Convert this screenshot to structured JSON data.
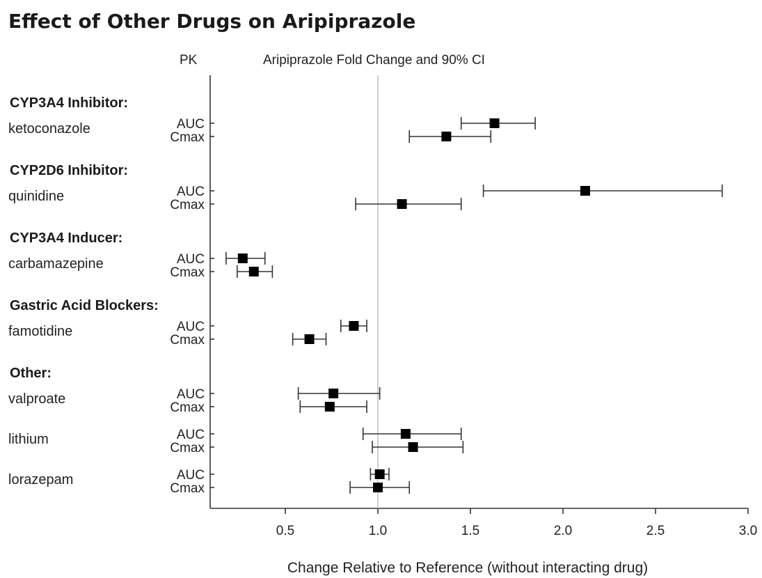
{
  "chart_data": {
    "type": "forest",
    "title": "Effect of Other Drugs on Aripiprazole",
    "column_header_left": "PK",
    "column_header_right": "Aripiprazole Fold Change and 90% CI",
    "xlabel": "Change Relative to Reference (without interacting drug)",
    "xlim": [
      0.1,
      3.0
    ],
    "xticks": [
      "0.5",
      "1.0",
      "1.5",
      "2.0",
      "2.5",
      "3.0"
    ],
    "reference_line": 1.0,
    "groups": [
      {
        "label": "CYP3A4 Inhibitor:",
        "drugs": [
          {
            "name": "ketoconazole",
            "rows": [
              {
                "pk": "AUC",
                "estimate": 1.63,
                "ci": [
                  1.45,
                  1.85
                ]
              },
              {
                "pk": "Cmax",
                "estimate": 1.37,
                "ci": [
                  1.17,
                  1.61
                ]
              }
            ]
          }
        ]
      },
      {
        "label": "CYP2D6 Inhibitor:",
        "drugs": [
          {
            "name": "quinidine",
            "rows": [
              {
                "pk": "AUC",
                "estimate": 2.12,
                "ci": [
                  1.57,
                  2.86
                ]
              },
              {
                "pk": "Cmax",
                "estimate": 1.13,
                "ci": [
                  0.88,
                  1.45
                ]
              }
            ]
          }
        ]
      },
      {
        "label": "CYP3A4 Inducer:",
        "drugs": [
          {
            "name": "carbamazepine",
            "rows": [
              {
                "pk": "AUC",
                "estimate": 0.27,
                "ci": [
                  0.18,
                  0.39
                ]
              },
              {
                "pk": "Cmax",
                "estimate": 0.33,
                "ci": [
                  0.24,
                  0.43
                ]
              }
            ]
          }
        ]
      },
      {
        "label": "Gastric Acid Blockers:",
        "drugs": [
          {
            "name": "famotidine",
            "rows": [
              {
                "pk": "AUC",
                "estimate": 0.87,
                "ci": [
                  0.8,
                  0.94
                ]
              },
              {
                "pk": "Cmax",
                "estimate": 0.63,
                "ci": [
                  0.54,
                  0.72
                ]
              }
            ]
          }
        ]
      },
      {
        "label": "Other:",
        "drugs": [
          {
            "name": "valproate",
            "rows": [
              {
                "pk": "AUC",
                "estimate": 0.76,
                "ci": [
                  0.57,
                  1.01
                ]
              },
              {
                "pk": "Cmax",
                "estimate": 0.74,
                "ci": [
                  0.58,
                  0.94
                ]
              }
            ]
          },
          {
            "name": "lithium",
            "rows": [
              {
                "pk": "AUC",
                "estimate": 1.15,
                "ci": [
                  0.92,
                  1.45
                ]
              },
              {
                "pk": "Cmax",
                "estimate": 1.19,
                "ci": [
                  0.97,
                  1.46
                ]
              }
            ]
          },
          {
            "name": "lorazepam",
            "rows": [
              {
                "pk": "AUC",
                "estimate": 1.01,
                "ci": [
                  0.96,
                  1.06
                ]
              },
              {
                "pk": "Cmax",
                "estimate": 1.0,
                "ci": [
                  0.85,
                  1.17
                ]
              }
            ]
          }
        ]
      }
    ]
  }
}
